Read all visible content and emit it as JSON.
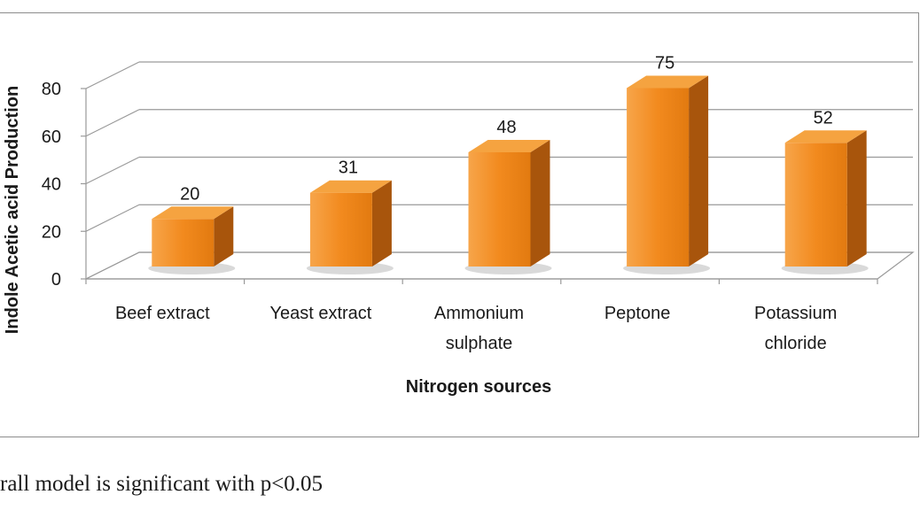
{
  "chart_data": {
    "type": "bar",
    "style": "3d-column",
    "categories": [
      [
        "Beef extract"
      ],
      [
        "Yeast extract"
      ],
      [
        "Ammonium",
        "sulphate"
      ],
      [
        "Peptone"
      ],
      [
        "Potassium",
        "chloride"
      ]
    ],
    "values": [
      20,
      31,
      48,
      75,
      52
    ],
    "data_labels": [
      "20",
      "31",
      "48",
      "75",
      "52"
    ],
    "xlabel": "Nitrogen sources",
    "ylabel": "Indole Acetic acid Production",
    "ylim": [
      0,
      80
    ],
    "yticks": [
      0,
      20,
      40,
      60,
      80
    ],
    "grid": true,
    "legend": "none",
    "colors": {
      "bar_front": "#f28a1e",
      "bar_top": "#f5a340",
      "bar_side": "#a8550c",
      "grid": "#9a9a9a"
    }
  },
  "footnote": "rall model is significant with p<0.05"
}
